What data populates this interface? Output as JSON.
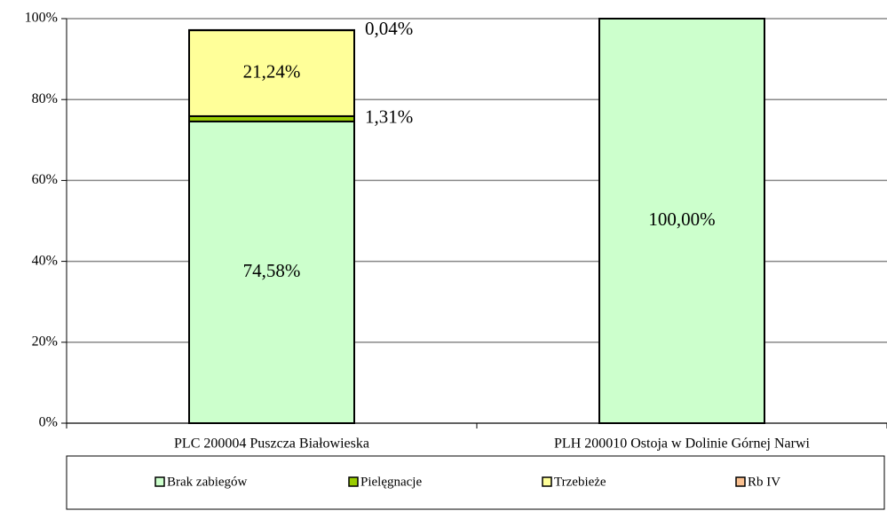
{
  "chart_data": {
    "type": "stacked_bar",
    "categories": [
      "PLC 200004 Puszcza Białowieska",
      "PLH 200010 Ostoja w Dolinie Górnej Narwi"
    ],
    "series": [
      {
        "name": "Brak zabiegów",
        "color": "#ccffcc",
        "values": [
          74.58,
          100
        ],
        "value_labels": [
          "74,58%",
          "100,00%"
        ]
      },
      {
        "name": "Pielęgnacje",
        "color": "#99cc00",
        "values": [
          1.31,
          0
        ],
        "value_labels": [
          "1,31%",
          null
        ]
      },
      {
        "name": "Trzebieże",
        "color": "#ffff99",
        "values": [
          21.24,
          0
        ],
        "value_labels": [
          "21,24%",
          null
        ]
      },
      {
        "name": "Rb IV",
        "color": "#fac090",
        "values": [
          0.04,
          0
        ],
        "value_labels": [
          "0,04%",
          null
        ]
      }
    ],
    "ylim": [
      0,
      100
    ],
    "yticks": [
      {
        "value": 0,
        "label": "0%"
      },
      {
        "value": 20,
        "label": "20%"
      },
      {
        "value": 40,
        "label": "40%"
      },
      {
        "value": 60,
        "label": "60%"
      },
      {
        "value": 80,
        "label": "80%"
      },
      {
        "value": 100,
        "label": "100%"
      }
    ],
    "grid": true,
    "legend": "bottom"
  }
}
